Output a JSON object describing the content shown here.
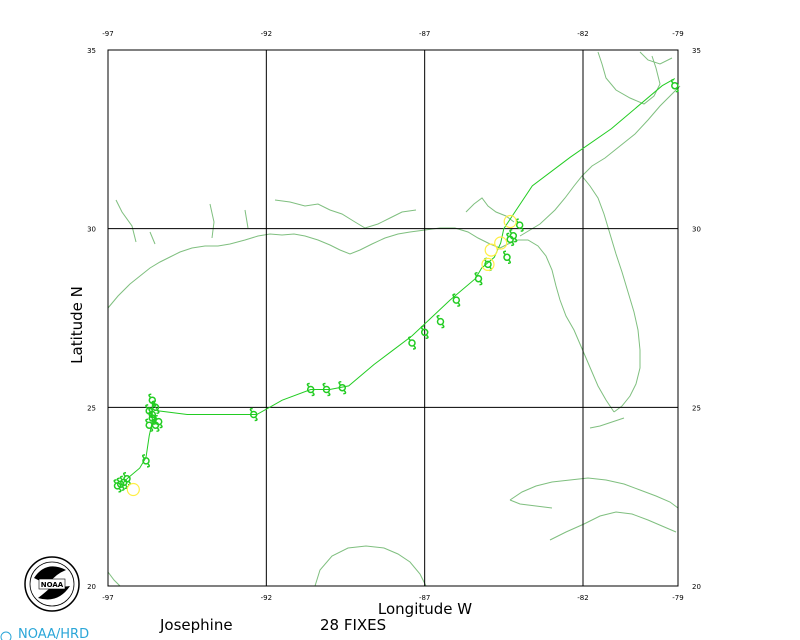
{
  "storm_name": "Josephine",
  "fix_count": "28 FIXES",
  "organization": "NOAA/HRD",
  "logo_text": "NOAA",
  "colors": {
    "track": "#22cc22",
    "coast": "#7fbf7f",
    "obs": "#ffee44",
    "grid": "#000000",
    "org": "#2aa6d8"
  },
  "chart_data": {
    "type": "scatter",
    "xlabel": "Longitude  W",
    "ylabel": "Latitude  N",
    "xlim": [
      -97,
      -79
    ],
    "ylim": [
      20,
      35
    ],
    "x_ticks": [
      -97,
      -92,
      -87,
      -82,
      -79
    ],
    "y_ticks": [
      20,
      25,
      30,
      35
    ],
    "x_tick_labels": [
      "-97",
      "-92",
      "-87",
      "-82",
      "-79"
    ],
    "y_tick_labels": [
      "20",
      "25",
      "30",
      "35"
    ],
    "grid": true,
    "track": [
      [
        -96.6,
        22.8
      ],
      [
        -96.4,
        23.0
      ],
      [
        -96.0,
        23.3
      ],
      [
        -95.8,
        23.6
      ],
      [
        -95.7,
        24.2
      ],
      [
        -95.6,
        24.6
      ],
      [
        -95.6,
        25.1
      ],
      [
        -95.4,
        24.9
      ],
      [
        -94.5,
        24.8
      ],
      [
        -93.0,
        24.8
      ],
      [
        -92.3,
        24.8
      ],
      [
        -91.5,
        25.2
      ],
      [
        -90.6,
        25.5
      ],
      [
        -90.0,
        25.5
      ],
      [
        -89.4,
        25.6
      ],
      [
        -88.6,
        26.2
      ],
      [
        -88.0,
        26.6
      ],
      [
        -87.4,
        27.0
      ],
      [
        -86.8,
        27.5
      ],
      [
        -86.2,
        28.0
      ],
      [
        -85.4,
        28.6
      ],
      [
        -85.2,
        28.9
      ],
      [
        -84.8,
        29.2
      ],
      [
        -84.6,
        29.6
      ],
      [
        -84.5,
        30.0
      ],
      [
        -83.6,
        31.2
      ],
      [
        -82.4,
        32.0
      ],
      [
        -81.1,
        32.8
      ],
      [
        -79.5,
        34.0
      ],
      [
        -79.1,
        34.2
      ]
    ],
    "fixes": [
      [
        -96.7,
        22.8
      ],
      [
        -96.6,
        22.85
      ],
      [
        -96.5,
        22.9
      ],
      [
        -96.4,
        23.0
      ],
      [
        -95.8,
        23.5
      ],
      [
        -95.7,
        24.5
      ],
      [
        -95.6,
        24.7
      ],
      [
        -95.5,
        24.5
      ],
      [
        -95.4,
        24.6
      ],
      [
        -95.7,
        24.9
      ],
      [
        -95.6,
        25.2
      ],
      [
        -95.5,
        25.0
      ],
      [
        -95.6,
        24.8
      ],
      [
        -92.4,
        24.8
      ],
      [
        -90.6,
        25.5
      ],
      [
        -90.1,
        25.5
      ],
      [
        -89.6,
        25.55
      ],
      [
        -87.4,
        26.8
      ],
      [
        -87.0,
        27.1
      ],
      [
        -86.5,
        27.4
      ],
      [
        -86.0,
        28.0
      ],
      [
        -85.3,
        28.6
      ],
      [
        -85.0,
        29.0
      ],
      [
        -84.4,
        29.2
      ],
      [
        -84.2,
        29.8
      ],
      [
        -84.0,
        30.1
      ],
      [
        -84.3,
        29.7
      ],
      [
        -79.1,
        34.0
      ]
    ],
    "observations": [
      [
        -96.2,
        22.7
      ],
      [
        -85.0,
        29.0
      ],
      [
        -84.9,
        29.4
      ],
      [
        -84.6,
        29.6
      ],
      [
        -84.3,
        30.2
      ]
    ]
  }
}
